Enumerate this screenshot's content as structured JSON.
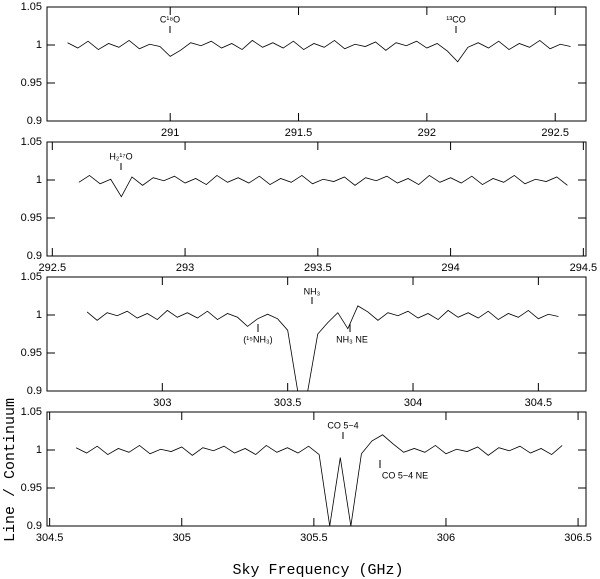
{
  "axis_labels": {
    "x": "Sky Frequency (GHz)",
    "y": "Line / Continuum"
  },
  "chart_data": [
    {
      "type": "line",
      "color": "#000000",
      "ylim": [
        0.9,
        1.05
      ],
      "yticks": [
        0.9,
        0.95,
        1,
        1.05
      ],
      "xlim": [
        290.52,
        292.62
      ],
      "xticks": [
        291,
        291.5,
        292,
        292.5
      ],
      "annotations": [
        "C¹⁸O",
        "¹³CO"
      ],
      "x": [
        290.6,
        290.64,
        290.68,
        290.72,
        290.76,
        290.8,
        290.84,
        290.88,
        290.92,
        290.96,
        291,
        291.04,
        291.08,
        291.12,
        291.16,
        291.2,
        291.24,
        291.28,
        291.32,
        291.36,
        291.4,
        291.44,
        291.48,
        291.52,
        291.56,
        291.6,
        291.64,
        291.68,
        291.72,
        291.76,
        291.8,
        291.84,
        291.88,
        291.92,
        291.96,
        292,
        292.04,
        292.08,
        292.12,
        292.16,
        292.2,
        292.24,
        292.28,
        292.32,
        292.36,
        292.4,
        292.44,
        292.48,
        292.52,
        292.56
      ],
      "values": [
        1.003,
        0.996,
        1.005,
        0.994,
        1.002,
        0.997,
        1.006,
        0.995,
        1.001,
        0.998,
        0.985,
        0.993,
        1.003,
        0.999,
        1.005,
        0.996,
        1.002,
        0.994,
        1.006,
        0.997,
        1.003,
        0.996,
        1.005,
        0.994,
        1.002,
        0.997,
        1.006,
        0.995,
        1.001,
        0.998,
        1.004,
        0.993,
        1.003,
        0.999,
        1.005,
        0.996,
        1.002,
        0.992,
        0.978,
        0.997,
        1.003,
        0.996,
        1.005,
        0.994,
        1.002,
        0.997,
        1.006,
        0.995,
        1.001,
        0.998
      ]
    },
    {
      "type": "line",
      "color": "#000000",
      "ylim": [
        0.9,
        1.05
      ],
      "yticks": [
        0.9,
        0.95,
        1,
        1.05
      ],
      "xlim": [
        292.48,
        294.51
      ],
      "xticks": [
        292.5,
        293,
        293.5,
        294,
        294.5
      ],
      "annotations": [
        "H₂¹⁷O"
      ],
      "x": [
        292.6,
        292.64,
        292.68,
        292.72,
        292.76,
        292.8,
        292.84,
        292.88,
        292.92,
        292.96,
        293,
        293.04,
        293.08,
        293.12,
        293.16,
        293.2,
        293.24,
        293.28,
        293.32,
        293.36,
        293.4,
        293.44,
        293.48,
        293.52,
        293.56,
        293.6,
        293.64,
        293.68,
        293.72,
        293.76,
        293.8,
        293.84,
        293.88,
        293.92,
        293.96,
        294,
        294.04,
        294.08,
        294.12,
        294.16,
        294.2,
        294.24,
        294.28,
        294.32,
        294.36,
        294.4,
        294.44
      ],
      "values": [
        0.997,
        1.006,
        0.995,
        1.001,
        0.978,
        1.004,
        0.993,
        1.003,
        0.999,
        1.005,
        0.996,
        1.002,
        0.994,
        1.006,
        0.997,
        1.003,
        0.996,
        1.005,
        0.994,
        1.002,
        0.997,
        1.006,
        0.995,
        1.001,
        0.998,
        1.004,
        0.993,
        1.003,
        0.999,
        1.005,
        0.996,
        1.002,
        0.994,
        1.006,
        0.997,
        1.003,
        0.996,
        1.005,
        0.994,
        1.002,
        0.997,
        1.006,
        0.995,
        1.001,
        0.998,
        1.004,
        0.993
      ]
    },
    {
      "type": "line",
      "color": "#000000",
      "ylim": [
        0.9,
        1.05
      ],
      "yticks": [
        0.9,
        0.95,
        1,
        1.05
      ],
      "xlim": [
        302.54,
        304.69
      ],
      "xticks": [
        303,
        303.5,
        304,
        304.5
      ],
      "annotations": [
        "NH₃",
        "(¹⁵NH₃)",
        "NH₃ NE"
      ],
      "x": [
        302.7,
        302.74,
        302.78,
        302.82,
        302.86,
        302.9,
        302.94,
        302.98,
        303.02,
        303.06,
        303.1,
        303.14,
        303.18,
        303.22,
        303.26,
        303.3,
        303.34,
        303.38,
        303.42,
        303.46,
        303.5,
        303.54,
        303.58,
        303.62,
        303.66,
        303.7,
        303.74,
        303.78,
        303.82,
        303.86,
        303.9,
        303.94,
        303.98,
        304.02,
        304.06,
        304.1,
        304.14,
        304.18,
        304.22,
        304.26,
        304.3,
        304.34,
        304.38,
        304.42,
        304.46,
        304.5,
        304.54,
        304.58
      ],
      "values": [
        1.004,
        0.993,
        1.003,
        0.999,
        1.005,
        0.996,
        1.002,
        0.994,
        1.006,
        0.997,
        1.003,
        0.996,
        1.005,
        0.994,
        1.002,
        0.997,
        0.985,
        0.995,
        1.001,
        0.995,
        0.98,
        0.9,
        0.9,
        0.975,
        0.99,
        1.003,
        0.982,
        1.012,
        1.004,
        0.993,
        1.003,
        0.999,
        1.005,
        0.996,
        1.002,
        0.994,
        1.006,
        0.997,
        1.003,
        0.996,
        1.005,
        0.994,
        1.002,
        0.997,
        1.006,
        0.995,
        1.001,
        0.998
      ]
    },
    {
      "type": "line",
      "color": "#000000",
      "ylim": [
        0.9,
        1.05
      ],
      "yticks": [
        0.9,
        0.95,
        1,
        1.05
      ],
      "xlim": [
        304.49,
        306.53
      ],
      "xticks": [
        304.5,
        305,
        305.5,
        306,
        306.5
      ],
      "annotations": [
        "CO 5−4",
        "CO 5−4 NE"
      ],
      "x": [
        304.6,
        304.64,
        304.68,
        304.72,
        304.76,
        304.8,
        304.84,
        304.88,
        304.92,
        304.96,
        305,
        305.04,
        305.08,
        305.12,
        305.16,
        305.2,
        305.24,
        305.28,
        305.32,
        305.36,
        305.4,
        305.44,
        305.48,
        305.52,
        305.56,
        305.6,
        305.64,
        305.68,
        305.72,
        305.76,
        305.8,
        305.84,
        305.88,
        305.92,
        305.96,
        306,
        306.04,
        306.08,
        306.12,
        306.16,
        306.2,
        306.24,
        306.28,
        306.32,
        306.36,
        306.4,
        306.44
      ],
      "values": [
        1.003,
        0.996,
        1.005,
        0.994,
        1.002,
        0.997,
        1.006,
        0.995,
        1.001,
        0.998,
        1.004,
        0.993,
        1.003,
        0.999,
        1.005,
        0.996,
        1.002,
        0.994,
        1.006,
        0.997,
        1.003,
        0.996,
        1.005,
        0.994,
        0.9,
        0.99,
        0.9,
        0.995,
        1.012,
        1.02,
        1.008,
        0.997,
        1.002,
        0.997,
        1.006,
        0.995,
        1.001,
        0.998,
        1.004,
        0.993,
        1.003,
        0.999,
        1.005,
        0.996,
        1.002,
        0.994,
        1.006
      ]
    }
  ]
}
